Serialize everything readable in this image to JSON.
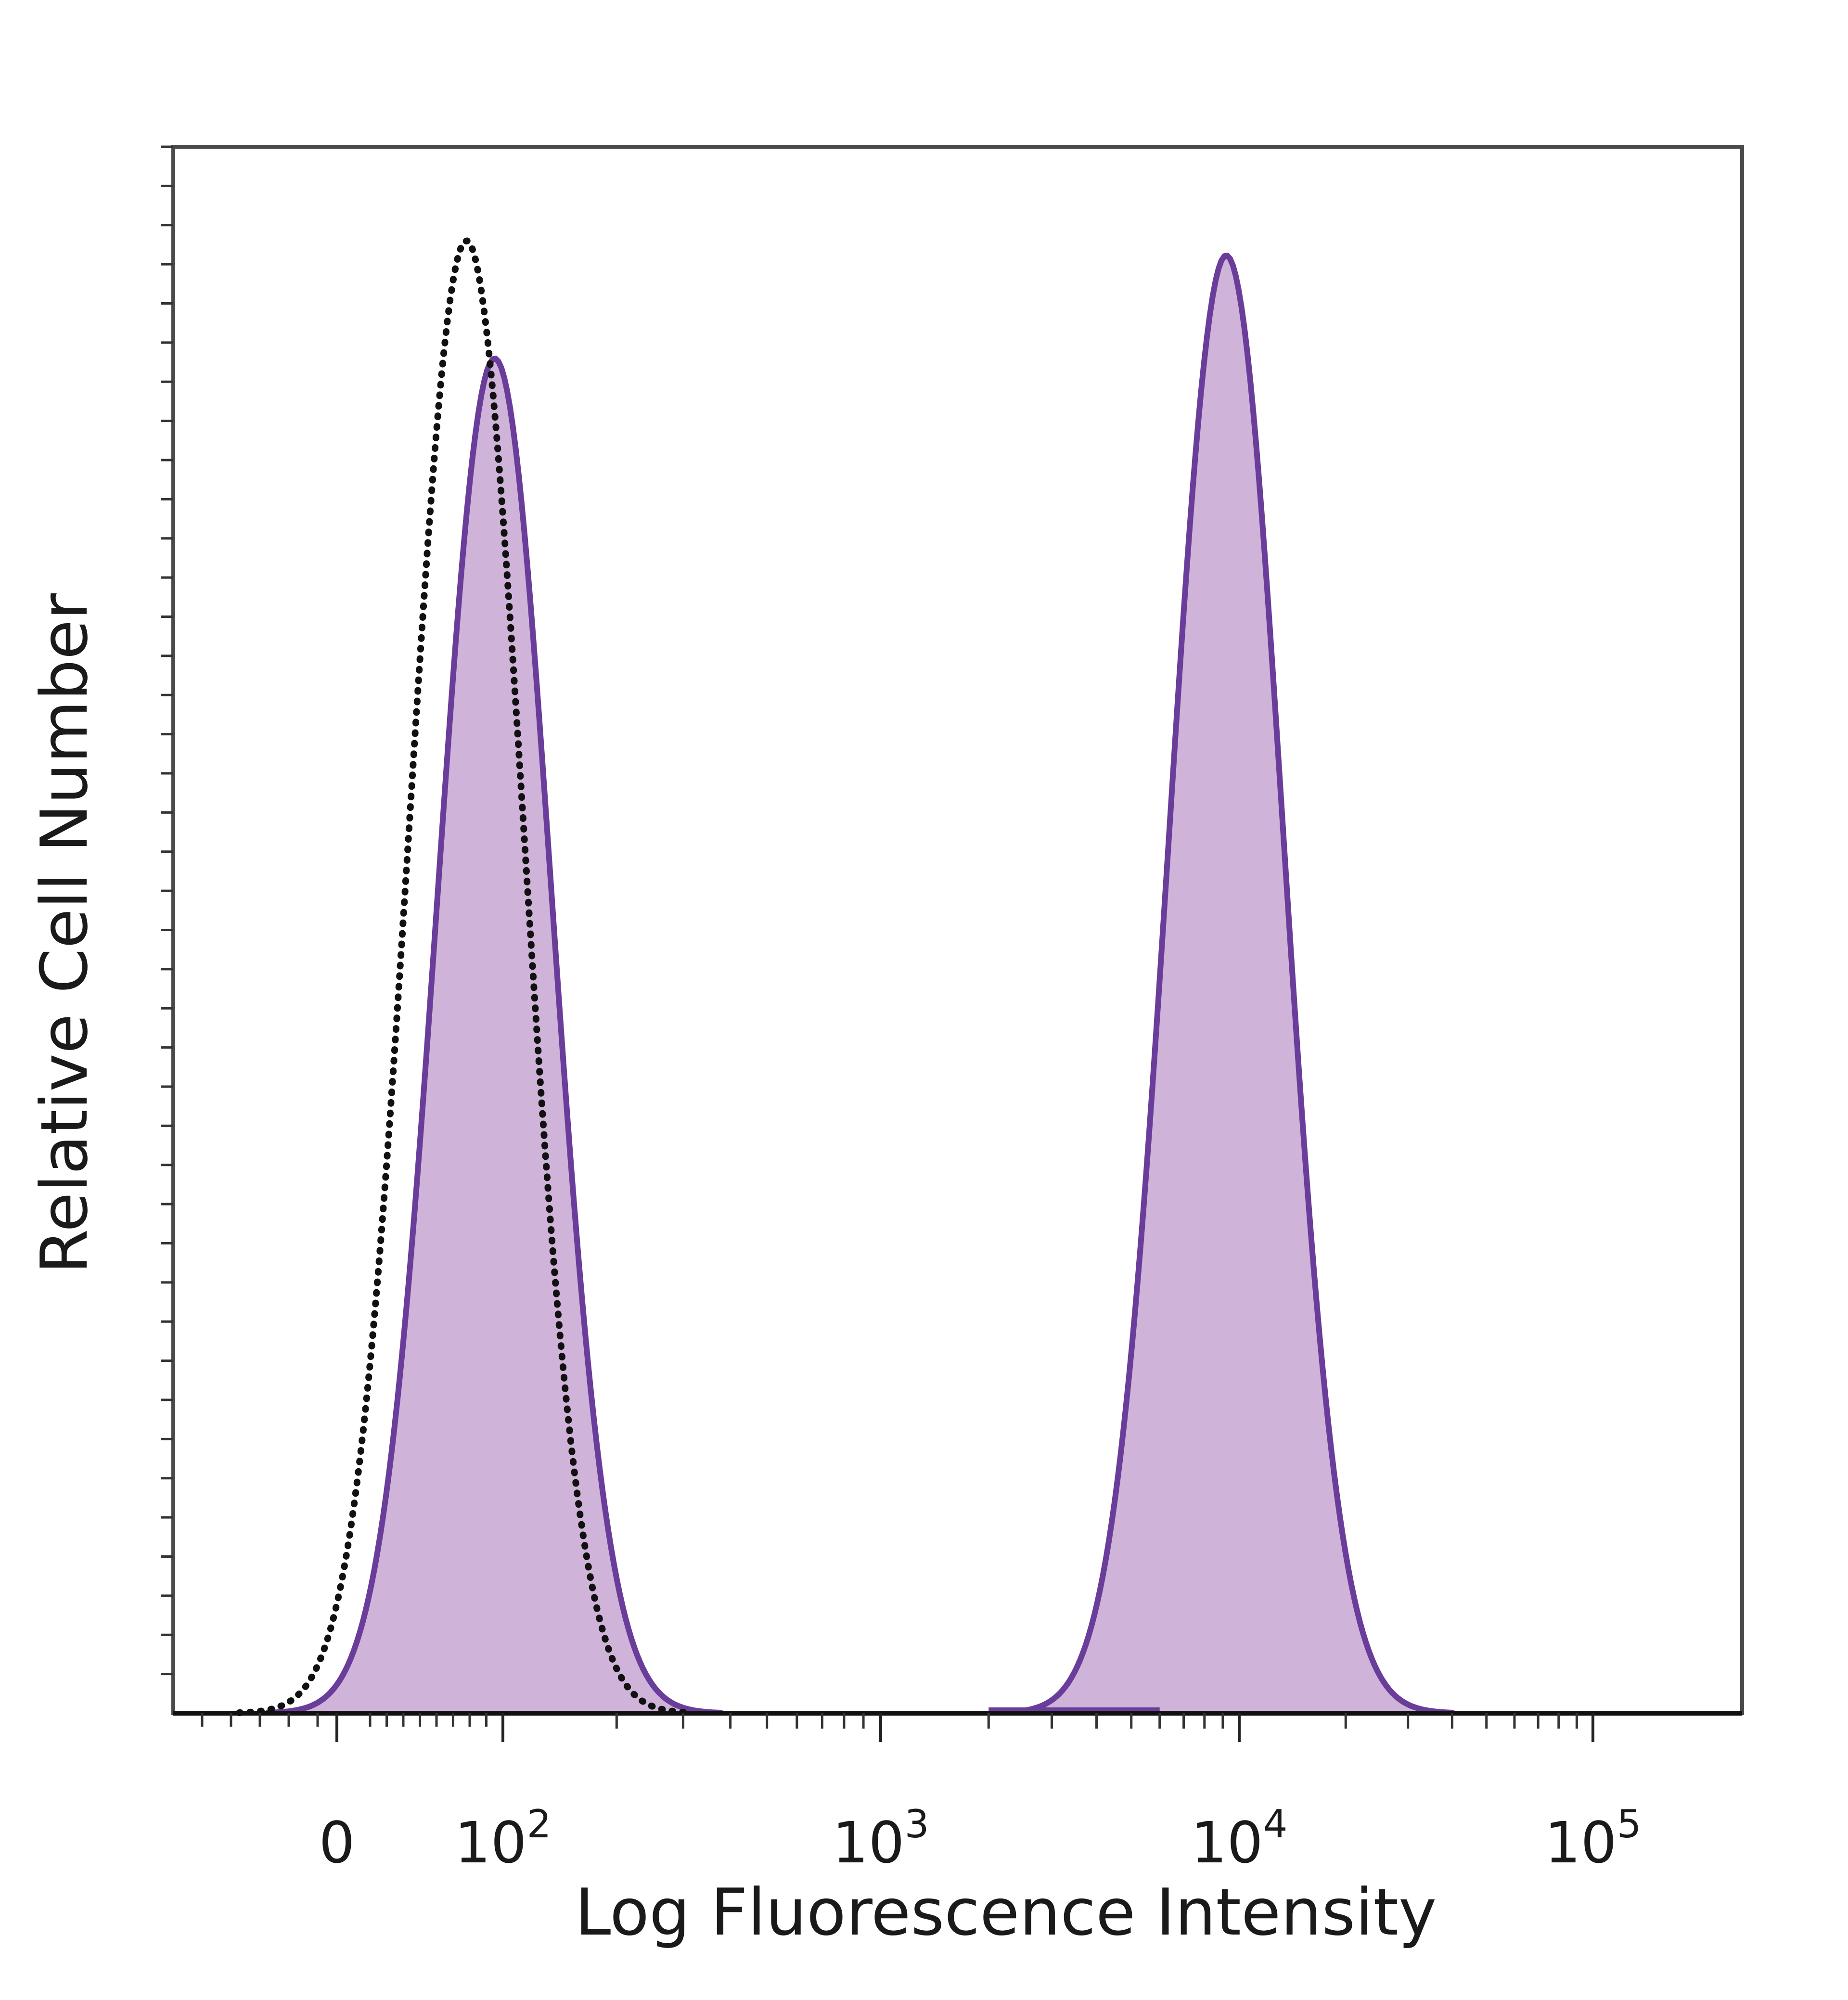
{
  "chart_data": {
    "type": "area",
    "title": "",
    "xlabel": "Log Fluorescence Intensity",
    "ylabel": "Relative Cell Number",
    "x_scale": "biexponential",
    "xlim": [
      -60,
      180000
    ],
    "ylim": [
      0,
      1
    ],
    "grid": false,
    "legend": "none",
    "x_tick_labels": [
      {
        "value": 0,
        "label": "0"
      },
      {
        "value": 100,
        "label": "10",
        "exponent": "2"
      },
      {
        "value": 1000,
        "label": "10",
        "exponent": "3"
      },
      {
        "value": 10000,
        "label": "10",
        "exponent": "4"
      },
      {
        "value": 100000,
        "label": "10",
        "exponent": "5"
      }
    ],
    "series": [
      {
        "style": "filled purple, solid outline",
        "color": "#6a3d9a",
        "fill": "#cfb3d9",
        "peaks": [
          {
            "center": 95,
            "height": 0.92
          },
          {
            "center": 9200,
            "height": 0.99
          }
        ]
      },
      {
        "style": "dotted black outline",
        "color": "#111111",
        "peaks": [
          {
            "center": 78,
            "height": 1.0
          }
        ]
      }
    ]
  }
}
